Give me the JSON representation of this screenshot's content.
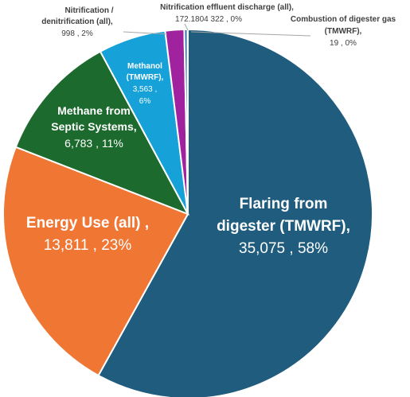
{
  "chart_data": {
    "type": "pie",
    "slices": [
      {
        "name": "Flaring from digester (TMWRF)",
        "name_lines": [
          "Flaring from",
          "digester (TMWRF),"
        ],
        "value": 35075,
        "value_text": "35,075",
        "percent_text": "58%",
        "color": "#1F5C7E"
      },
      {
        "name": "Energy Use (all)",
        "name_lines": [
          "Energy Use (all) ,"
        ],
        "value": 13811,
        "value_text": "13,811",
        "percent_text": "23%",
        "color": "#F07634"
      },
      {
        "name": "Methane from Septic Systems",
        "name_lines": [
          "Methane from",
          "Septic Systems,"
        ],
        "value": 6783,
        "value_text": "6,783",
        "percent_text": "11%",
        "color": "#1D6A2E"
      },
      {
        "name": "Methanol (TMWRF)",
        "name_lines": [
          "Methanol",
          "(TMWRF),",
          "3,563 ,",
          "6%"
        ],
        "value": 3563,
        "value_text": "3,563",
        "percent_text": "6%",
        "color": "#16A2D8"
      },
      {
        "name": "Nitrification / denitrification (all)",
        "name_lines": [
          "Nitrification /",
          "denitrification (all),",
          "998 , 2%"
        ],
        "value": 998,
        "value_text": "998",
        "percent_text": "2%",
        "color": "#A0229E"
      },
      {
        "name": "Nitrification effluent discharge (all)",
        "name_lines": [
          "Nitrification effluent discharge (all),",
          "172.1804 322 , 0%"
        ],
        "value": 172.1804322,
        "value_text": "172.1804 322",
        "percent_text": "0%",
        "color": "#2E75B6"
      },
      {
        "name": "Combustion of digester gas (TMWRF)",
        "name_lines": [
          "Combustion of digester gas",
          "(TMWRF),",
          "19 , 0%"
        ],
        "value": 19,
        "value_text": "19",
        "percent_text": "0%",
        "color": "#70AD47"
      }
    ],
    "inside_value_lines": [
      "35,075 , 58%",
      "13,811 , 23%",
      "6,783 , 11%"
    ]
  }
}
